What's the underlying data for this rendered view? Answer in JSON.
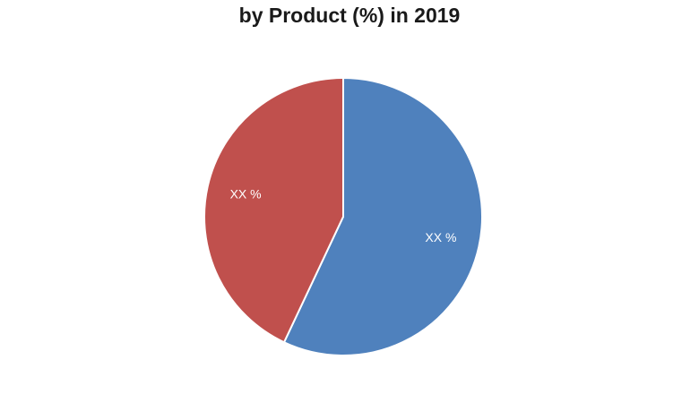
{
  "chart_data": {
    "type": "pie",
    "title": "by Product (%) in 2019",
    "slices": [
      {
        "value": 57,
        "label": "XX %",
        "color": "#4f81bd"
      },
      {
        "value": 43,
        "label": "XX %",
        "color": "#c0504d"
      }
    ],
    "start": "12 o'clock",
    "direction": "clockwise",
    "legend": "none"
  }
}
